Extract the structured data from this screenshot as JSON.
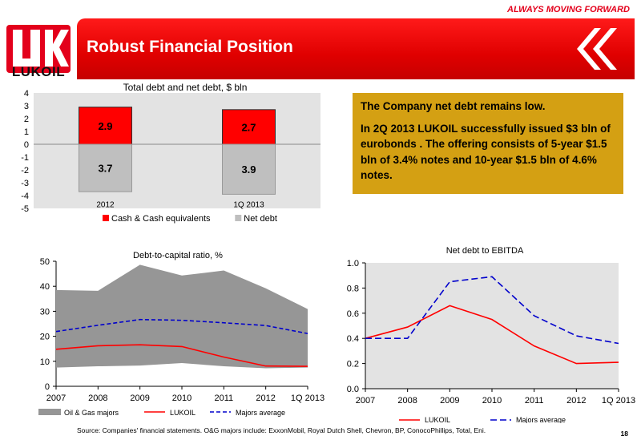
{
  "header": {
    "tagline": "ALWAYS MOVING FORWARD",
    "logo_text": "LUKOIL",
    "title": "Robust Financial Position",
    "brand_color": "#e3001b"
  },
  "info_box": {
    "line1": "The Company net debt remains low.",
    "line2": "In 2Q 2013 LUKOIL successfully issued $3 bln of eurobonds . The offering consists of 5-year $1.5 bln of 3.4% notes and 10-year $1.5 bln of 4.6% notes.",
    "color": "#d4a013"
  },
  "chart_data": [
    {
      "type": "bar",
      "title": "Total debt and net debt, $ bln",
      "categories": [
        "2012",
        "1Q 2013"
      ],
      "ylim": [
        -5,
        4
      ],
      "yticks": [
        4,
        3,
        2,
        1,
        0,
        -1,
        -2,
        -3,
        -4,
        -5
      ],
      "series": [
        {
          "name": "Cash & Cash equivalents",
          "values": [
            2.9,
            2.7
          ],
          "labels": [
            "2.9",
            "2.7"
          ],
          "color": "#ff0000"
        },
        {
          "name": "Net debt",
          "values": [
            -3.7,
            -3.9
          ],
          "labels": [
            "3.7",
            "3.9"
          ],
          "color": "#bfbfbf"
        }
      ],
      "legend": "bottom"
    },
    {
      "type": "area",
      "title": "Debt-to-capital ratio, %",
      "categories": [
        "2007",
        "2008",
        "2009",
        "2010",
        "2011",
        "2012",
        "1Q 2013"
      ],
      "ylim": [
        0,
        50
      ],
      "yticks": [
        0,
        10,
        20,
        30,
        40,
        50
      ],
      "range_band": {
        "name": "Oil & Gas majors",
        "low": [
          7.5,
          8,
          8.3,
          9.3,
          8,
          7.2,
          7.5
        ],
        "high": [
          38.5,
          38.2,
          48.6,
          44.3,
          46.3,
          39.2,
          30.9
        ],
        "color": "#969696"
      },
      "series": [
        {
          "name": "LUKOIL",
          "values": [
            14.8,
            16.2,
            16.6,
            15.9,
            11.7,
            8.1,
            8.0
          ],
          "color": "#ff0000",
          "style": "solid"
        },
        {
          "name": "Majors average",
          "values": [
            21.9,
            24.4,
            26.7,
            26.4,
            25.4,
            24.3,
            21.1
          ],
          "color": "#0000cc",
          "style": "dashed"
        }
      ],
      "legend": "bottom"
    },
    {
      "type": "line",
      "title": "Net debt to EBITDA",
      "categories": [
        "2007",
        "2008",
        "2009",
        "2010",
        "2011",
        "2012",
        "1Q 2013"
      ],
      "ylim": [
        0,
        1.0
      ],
      "yticks": [
        "0.0",
        "0.2",
        "0.4",
        "0.6",
        "0.8",
        "1.0"
      ],
      "series": [
        {
          "name": "LUKOIL",
          "values": [
            0.4,
            0.49,
            0.66,
            0.55,
            0.34,
            0.2,
            0.21
          ],
          "color": "#ff0000",
          "style": "solid"
        },
        {
          "name": "Majors average",
          "values": [
            0.4,
            0.4,
            0.85,
            0.89,
            0.58,
            0.42,
            0.36
          ],
          "color": "#0000cc",
          "style": "dashed"
        }
      ],
      "legend": "bottom"
    }
  ],
  "footer": {
    "source": "Source: Companies' financial statements. O&G majors include: ExxonMobil, Royal Dutch Shell, Chevron, BP, ConocoPhillips, Total, Eni.",
    "page": "18"
  }
}
